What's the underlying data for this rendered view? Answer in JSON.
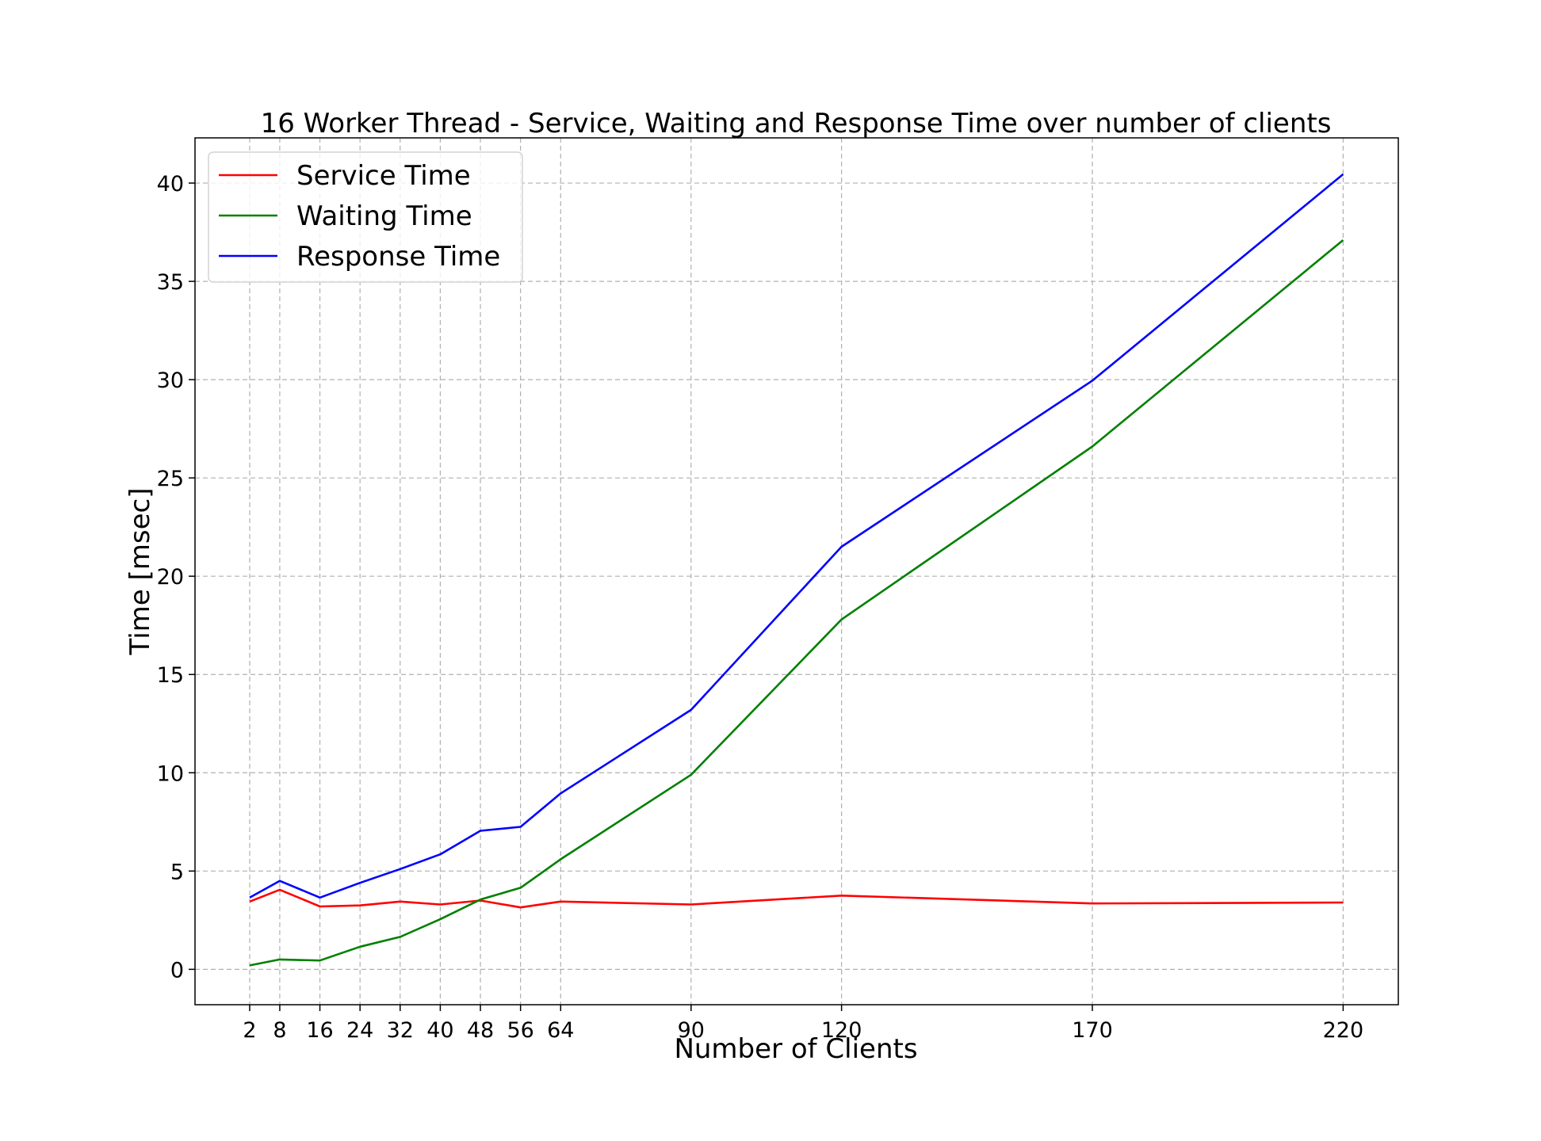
{
  "chart_data": {
    "type": "line",
    "title": "16 Worker Thread - Service, Waiting and Response Time over number of clients",
    "xlabel": "Number of Clients",
    "ylabel": "Time [msec]",
    "x": [
      2,
      8,
      16,
      24,
      32,
      40,
      48,
      56,
      64,
      90,
      120,
      170,
      220
    ],
    "xticks": [
      2,
      8,
      16,
      24,
      32,
      40,
      48,
      56,
      64,
      90,
      120,
      170,
      220
    ],
    "yticks": [
      0,
      5,
      10,
      15,
      20,
      25,
      30,
      35,
      40
    ],
    "xlim": [
      -8.9,
      231
    ],
    "ylim": [
      -1.8,
      42.3
    ],
    "grid": true,
    "legend_position": "top-left",
    "series": [
      {
        "name": "Service Time",
        "color": "#ff0000",
        "values": [
          3.45,
          4.05,
          3.2,
          3.25,
          3.45,
          3.3,
          3.5,
          3.15,
          3.45,
          3.3,
          3.75,
          3.35,
          3.4
        ]
      },
      {
        "name": "Waiting Time",
        "color": "#008000",
        "values": [
          0.2,
          0.5,
          0.45,
          1.15,
          1.65,
          2.55,
          3.55,
          4.15,
          5.6,
          9.9,
          17.8,
          26.6,
          37.1
        ]
      },
      {
        "name": "Response Time",
        "color": "#0000ff",
        "values": [
          3.65,
          4.5,
          3.65,
          4.4,
          5.1,
          5.85,
          7.05,
          7.25,
          8.95,
          13.2,
          21.5,
          29.95,
          40.45
        ]
      }
    ]
  }
}
